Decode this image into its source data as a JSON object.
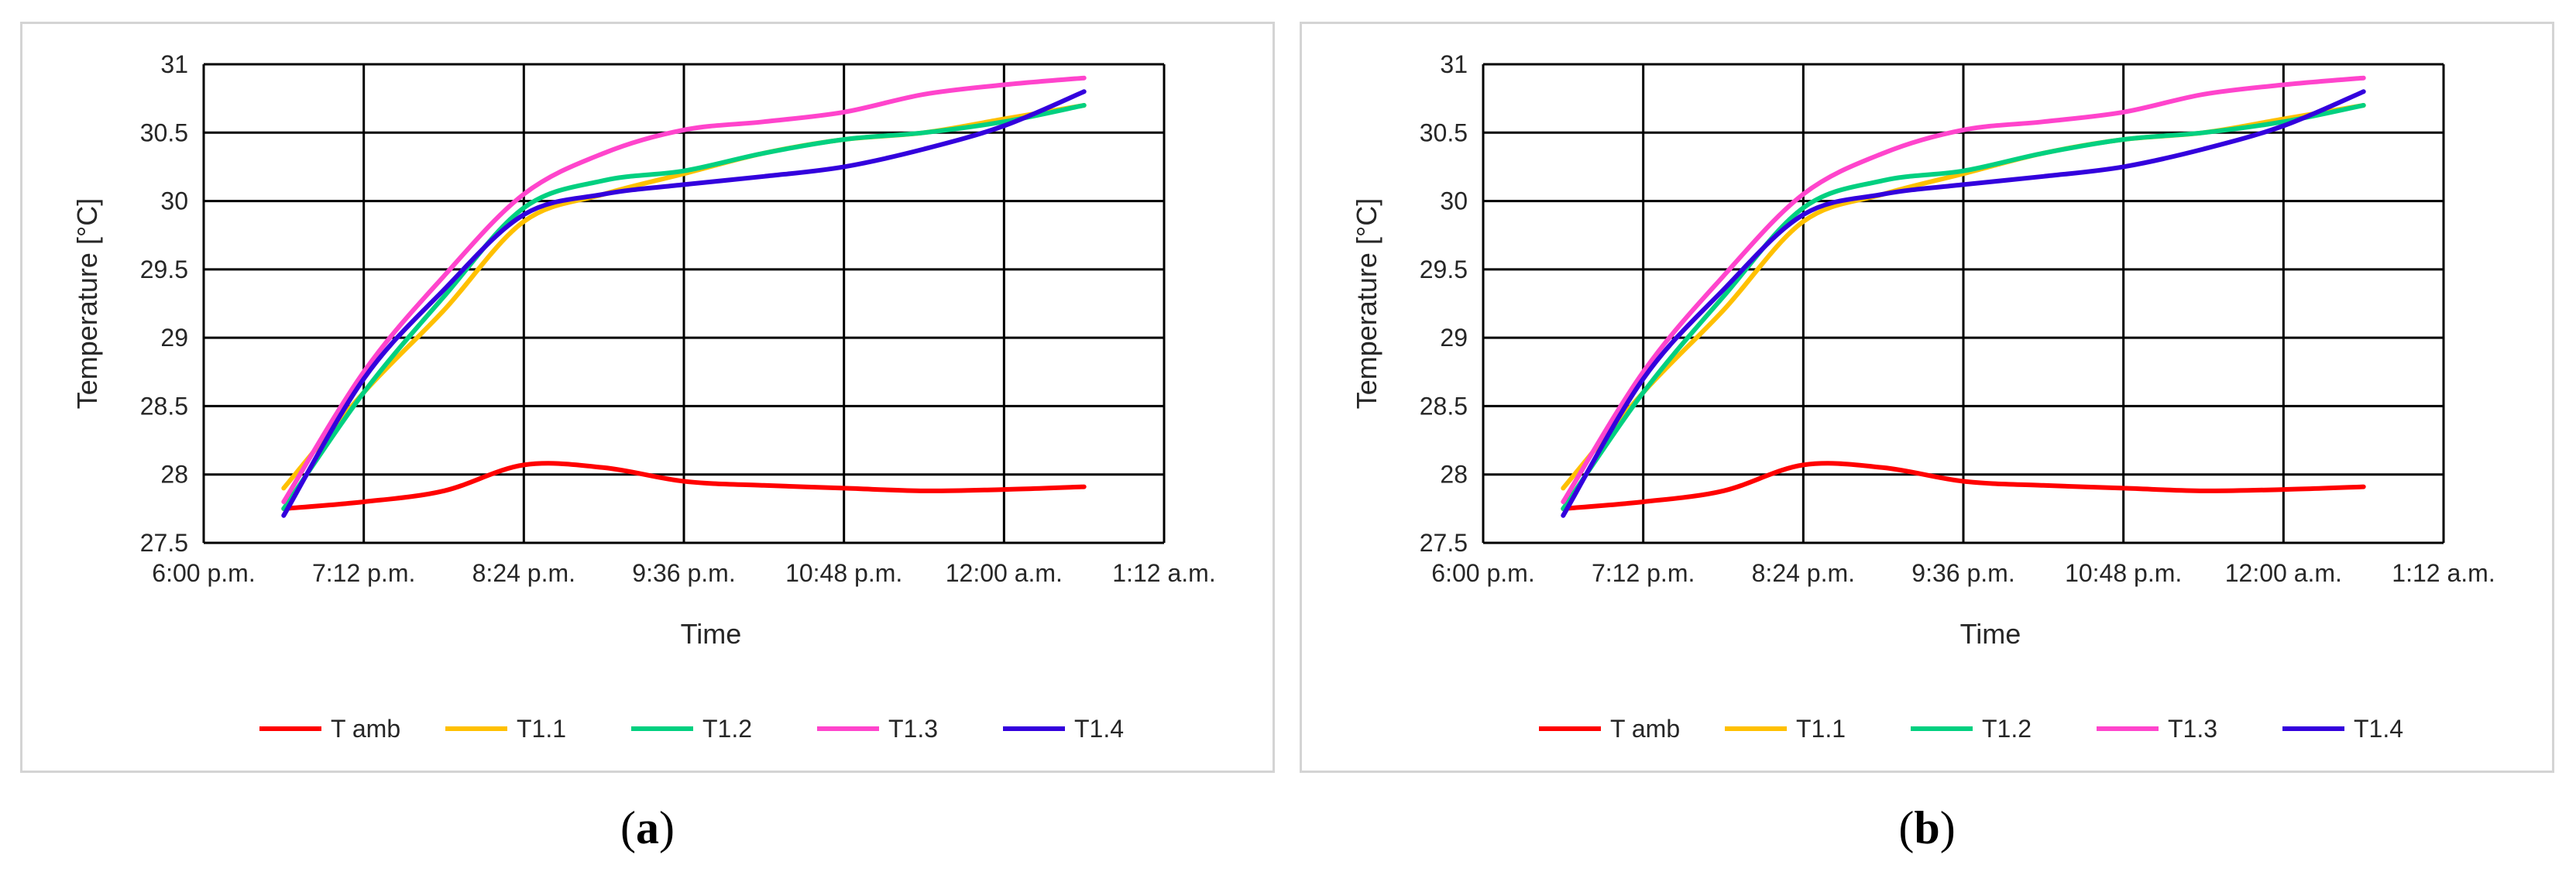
{
  "chart_data": [
    {
      "id": "a",
      "type": "line",
      "caption": "a",
      "xlabel": "Time",
      "ylabel": "Temperature [°C]",
      "x_tick_labels": [
        "6:00 p.m.",
        "7:12 p.m.",
        "8:24 p.m.",
        "9:36 p.m.",
        "10:48 p.m.",
        "12:00 a.m.",
        "1:12 a.m."
      ],
      "y_tick_labels": [
        "27.5",
        "28",
        "28.5",
        "29",
        "29.5",
        "30",
        "30.5",
        "31"
      ],
      "xlim": [
        "6:00 p.m.",
        "1:12 a.m."
      ],
      "ylim": [
        27.5,
        31
      ],
      "grid": true,
      "legend_position": "bottom",
      "x": [
        "6:36 p.m.",
        "7:12 p.m.",
        "7:48 p.m.",
        "8:24 p.m.",
        "9:00 p.m.",
        "9:36 p.m.",
        "10:12 p.m.",
        "10:48 p.m.",
        "11:24 p.m.",
        "12:00 a.m.",
        "12:36 a.m."
      ],
      "series": [
        {
          "name": "T amb",
          "color": "#ff0000",
          "values": [
            27.75,
            27.8,
            27.88,
            28.07,
            28.05,
            27.95,
            27.92,
            27.9,
            27.88,
            27.89,
            27.91
          ]
        },
        {
          "name": "T1.1",
          "color": "#ffc000",
          "values": [
            27.9,
            28.6,
            29.2,
            29.85,
            30.05,
            30.2,
            30.35,
            30.45,
            30.5,
            30.6,
            30.7
          ]
        },
        {
          "name": "T1.2",
          "color": "#00d080",
          "values": [
            27.75,
            28.6,
            29.3,
            29.95,
            30.15,
            30.22,
            30.35,
            30.45,
            30.5,
            30.58,
            30.7
          ]
        },
        {
          "name": "T1.3",
          "color": "#ff44cc",
          "values": [
            27.8,
            28.75,
            29.45,
            30.05,
            30.35,
            30.52,
            30.58,
            30.65,
            30.78,
            30.85,
            30.9
          ]
        },
        {
          "name": "T1.4",
          "color": "#3300dd",
          "values": [
            27.7,
            28.7,
            29.35,
            29.9,
            30.05,
            30.12,
            30.18,
            30.25,
            30.38,
            30.55,
            30.8
          ]
        }
      ]
    },
    {
      "id": "b",
      "type": "line",
      "caption": "b",
      "xlabel": "Time",
      "ylabel": "Temperature [°C]",
      "x_tick_labels": [
        "6:00 p.m.",
        "7:12 p.m.",
        "8:24 p.m.",
        "9:36 p.m.",
        "10:48 p.m.",
        "12:00 a.m.",
        "1:12 a.m."
      ],
      "y_tick_labels": [
        "27.5",
        "28",
        "28.5",
        "29",
        "29.5",
        "30",
        "30.5",
        "31"
      ],
      "xlim": [
        "6:00 p.m.",
        "1:12 a.m."
      ],
      "ylim": [
        27.5,
        31
      ],
      "grid": true,
      "legend_position": "bottom",
      "x": [
        "6:36 p.m.",
        "7:12 p.m.",
        "7:48 p.m.",
        "8:24 p.m.",
        "9:00 p.m.",
        "9:36 p.m.",
        "10:12 p.m.",
        "10:48 p.m.",
        "11:24 p.m.",
        "12:00 a.m.",
        "12:36 a.m."
      ],
      "series": [
        {
          "name": "T amb",
          "color": "#ff0000",
          "values": [
            27.75,
            27.8,
            27.88,
            28.07,
            28.05,
            27.95,
            27.92,
            27.9,
            27.88,
            27.89,
            27.91
          ]
        },
        {
          "name": "T1.1",
          "color": "#ffc000",
          "values": [
            27.9,
            28.6,
            29.2,
            29.85,
            30.05,
            30.2,
            30.35,
            30.45,
            30.5,
            30.6,
            30.7
          ]
        },
        {
          "name": "T1.2",
          "color": "#00d080",
          "values": [
            27.75,
            28.6,
            29.3,
            29.95,
            30.15,
            30.22,
            30.35,
            30.45,
            30.5,
            30.58,
            30.7
          ]
        },
        {
          "name": "T1.3",
          "color": "#ff44cc",
          "values": [
            27.8,
            28.75,
            29.45,
            30.05,
            30.35,
            30.52,
            30.58,
            30.65,
            30.78,
            30.85,
            30.9
          ]
        },
        {
          "name": "T1.4",
          "color": "#3300dd",
          "values": [
            27.7,
            28.7,
            29.35,
            29.9,
            30.05,
            30.12,
            30.18,
            30.25,
            30.38,
            30.55,
            30.8
          ]
        }
      ]
    }
  ]
}
